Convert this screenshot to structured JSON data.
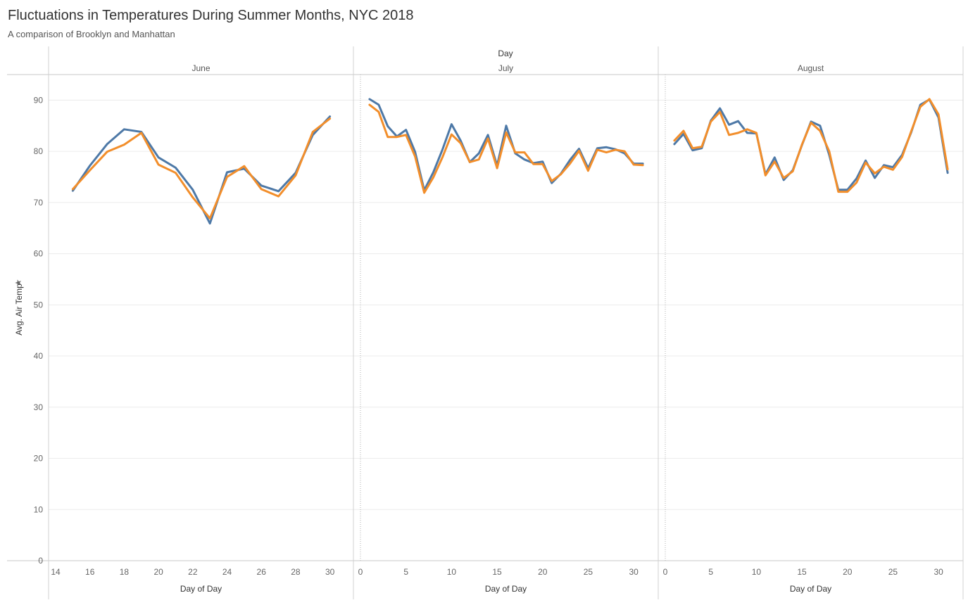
{
  "title": "Fluctuations in Temperatures During Summer Months, NYC 2018",
  "subtitle": "A comparison of Brooklyn and Manhattan",
  "chart_data": {
    "type": "line",
    "column_header": "Day",
    "ylabel": "Avg. Air Temp",
    "ylim": [
      0,
      95
    ],
    "yticks": [
      0,
      10,
      20,
      30,
      40,
      50,
      60,
      70,
      80,
      90
    ],
    "grid": true,
    "colors": {
      "series_1": "#4e79a7",
      "series_2": "#f28e2b"
    },
    "panels": [
      {
        "label": "June",
        "xlabel": "Day of Day",
        "xlim": [
          14,
          31
        ],
        "xticks": [
          14,
          16,
          18,
          20,
          22,
          24,
          26,
          28,
          30
        ],
        "series": [
          {
            "x": [
              15,
              16,
              17,
              18,
              19,
              20,
              21,
              22,
              23,
              24,
              25,
              26,
              27,
              28,
              29,
              30
            ],
            "values": [
              72.3,
              77.2,
              81.4,
              84.3,
              83.8,
              78.8,
              76.8,
              72.5,
              65.9,
              75.9,
              76.6,
              73.3,
              72.2,
              75.8,
              83.2,
              86.8
            ]
          },
          {
            "x": [
              15,
              16,
              17,
              18,
              19,
              20,
              21,
              22,
              23,
              24,
              25,
              26,
              27,
              28,
              29,
              30
            ],
            "values": [
              72.6,
              76.3,
              79.9,
              81.3,
              83.6,
              77.4,
              75.8,
              71.0,
              66.9,
              75.0,
              77.1,
              72.6,
              71.2,
              75.3,
              83.8,
              86.4
            ]
          }
        ]
      },
      {
        "label": "July",
        "xlabel": "Day of Day",
        "xlim": [
          0,
          32
        ],
        "xticks": [
          0,
          5,
          10,
          15,
          20,
          25,
          30
        ],
        "series": [
          {
            "x": [
              1,
              2,
              3,
              4,
              5,
              6,
              7,
              8,
              9,
              10,
              11,
              12,
              13,
              14,
              15,
              16,
              17,
              18,
              19,
              20,
              21,
              22,
              23,
              24,
              25,
              26,
              27,
              28,
              29,
              30,
              31
            ],
            "values": [
              90.2,
              89.1,
              84.9,
              82.9,
              84.2,
              79.9,
              72.4,
              75.9,
              80.3,
              85.3,
              82.1,
              77.9,
              79.6,
              83.2,
              77.2,
              85.0,
              79.6,
              78.4,
              77.7,
              78.0,
              73.8,
              75.6,
              78.3,
              80.5,
              76.7,
              80.6,
              80.8,
              80.4,
              79.6,
              77.6,
              77.6
            ]
          },
          {
            "x": [
              1,
              2,
              3,
              4,
              5,
              6,
              7,
              8,
              9,
              10,
              11,
              12,
              13,
              14,
              15,
              16,
              17,
              18,
              19,
              20,
              21,
              22,
              23,
              24,
              25,
              26,
              27,
              28,
              29,
              30,
              31
            ],
            "values": [
              89.1,
              87.7,
              82.8,
              82.8,
              83.2,
              79.0,
              71.9,
              74.9,
              78.8,
              83.3,
              81.6,
              77.9,
              78.4,
              82.5,
              76.7,
              83.7,
              79.8,
              79.8,
              77.5,
              77.5,
              74.2,
              75.5,
              77.6,
              80.1,
              76.2,
              80.3,
              79.8,
              80.3,
              80.0,
              77.4,
              77.3
            ]
          }
        ]
      },
      {
        "label": "August",
        "xlabel": "Day of Day",
        "xlim": [
          0,
          32
        ],
        "xticks": [
          0,
          5,
          10,
          15,
          20,
          25,
          30
        ],
        "series": [
          {
            "x": [
              1,
              2,
              3,
              4,
              5,
              6,
              7,
              8,
              9,
              10,
              11,
              12,
              13,
              14,
              15,
              16,
              17,
              18,
              19,
              20,
              21,
              22,
              23,
              24,
              25,
              26,
              27,
              28,
              29,
              30,
              31
            ],
            "values": [
              81.4,
              83.4,
              80.2,
              80.6,
              86.0,
              88.4,
              85.2,
              85.9,
              83.6,
              83.5,
              75.5,
              78.8,
              74.4,
              76.3,
              81.2,
              85.8,
              85.0,
              79.3,
              72.5,
              72.5,
              74.7,
              78.2,
              74.8,
              77.3,
              76.9,
              79.3,
              83.7,
              89.1,
              90.1,
              86.6,
              75.8
            ]
          },
          {
            "x": [
              1,
              2,
              3,
              4,
              5,
              6,
              7,
              8,
              9,
              10,
              11,
              12,
              13,
              14,
              15,
              16,
              17,
              18,
              19,
              20,
              21,
              22,
              23,
              24,
              25,
              26,
              27,
              28,
              29,
              30,
              31
            ],
            "values": [
              82.1,
              84.0,
              80.6,
              80.9,
              85.8,
              87.7,
              83.2,
              83.6,
              84.3,
              83.6,
              75.3,
              78.0,
              74.8,
              76.1,
              81.3,
              85.6,
              84.0,
              80.0,
              72.1,
              72.1,
              73.9,
              77.8,
              75.7,
              77.0,
              76.4,
              78.9,
              83.9,
              88.7,
              90.2,
              87.2,
              76.5
            ]
          }
        ]
      }
    ]
  }
}
